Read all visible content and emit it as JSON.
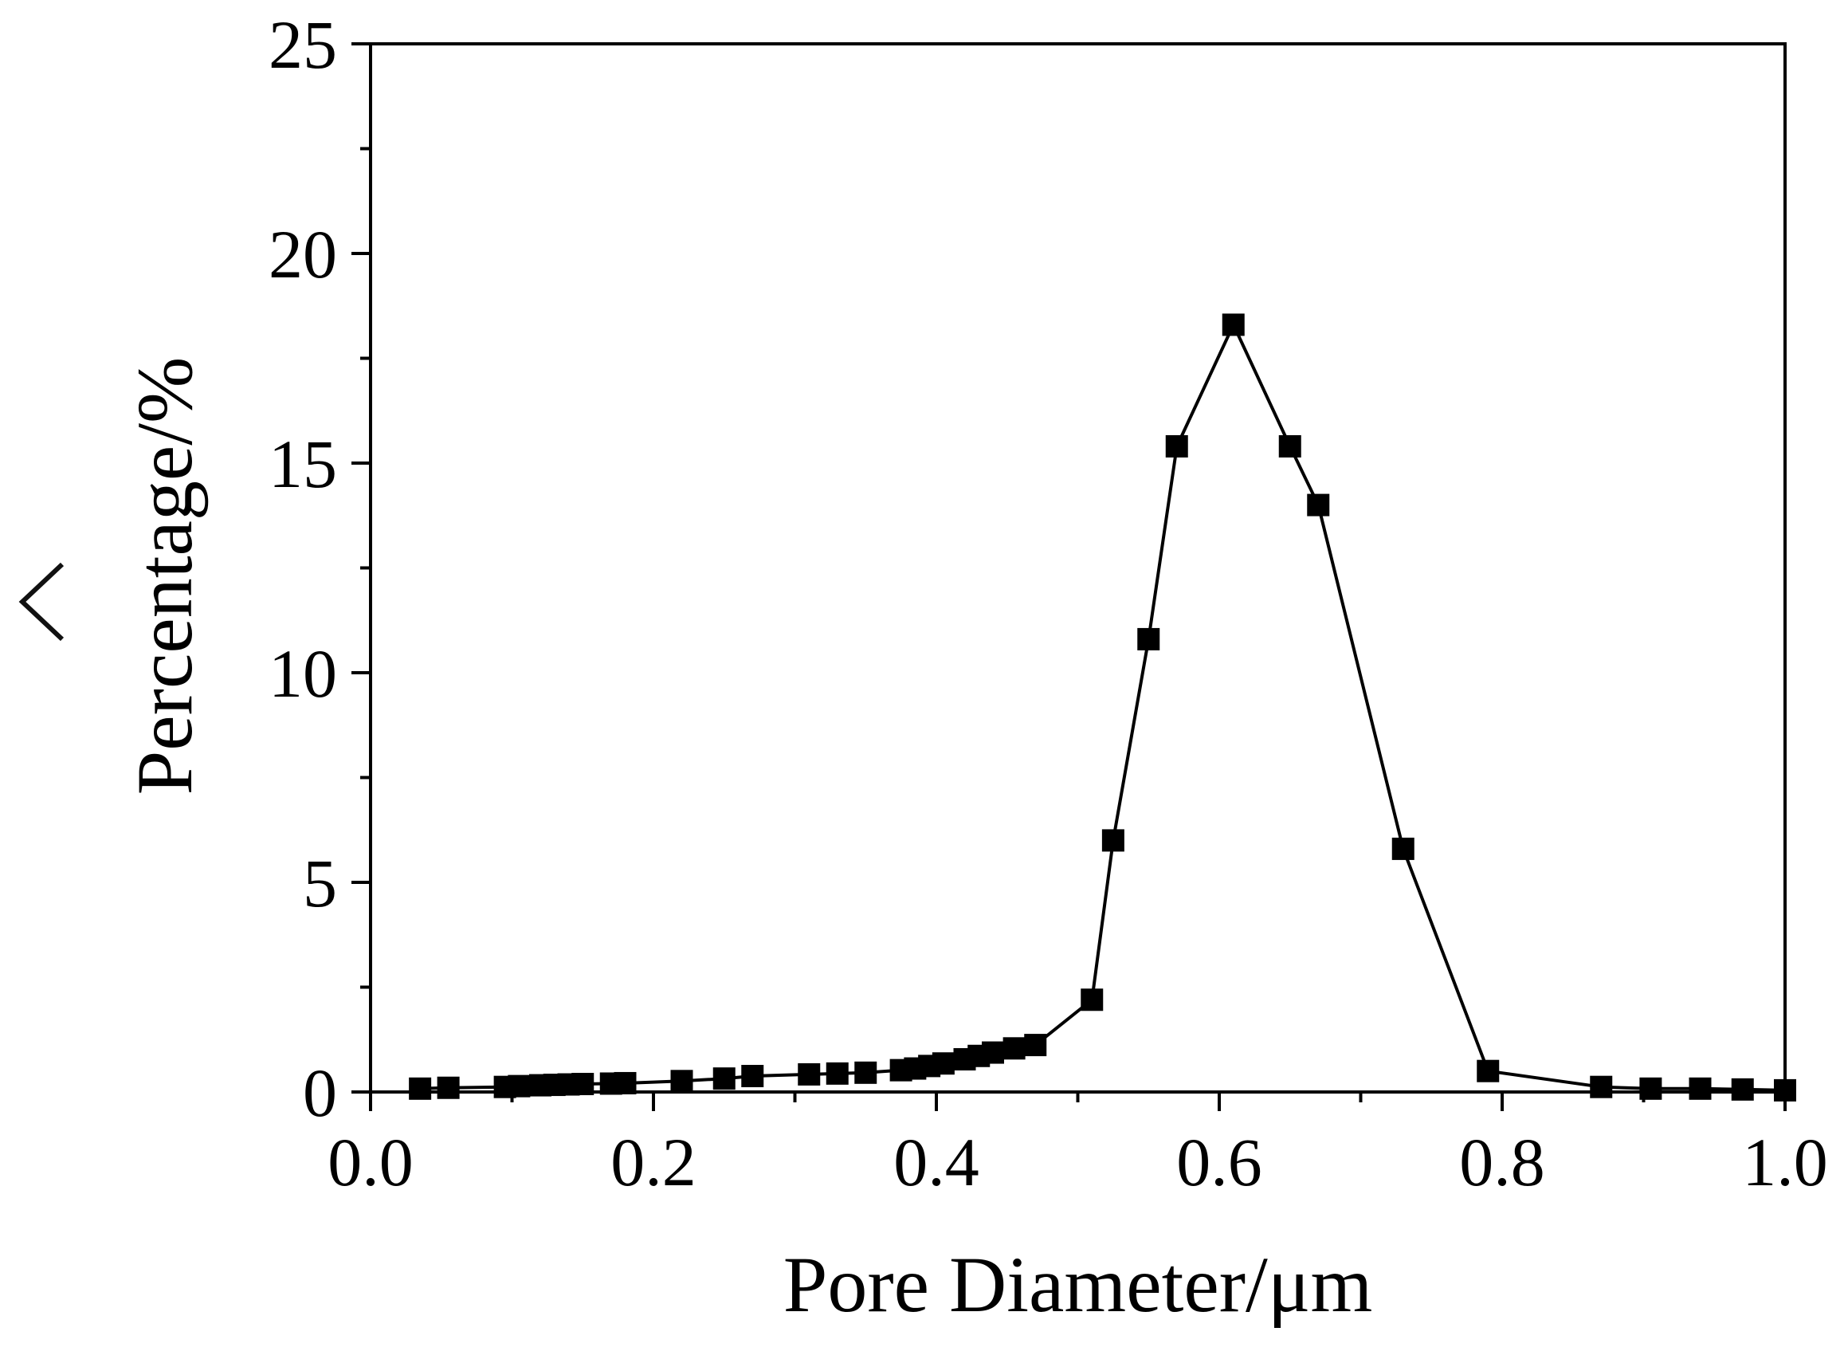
{
  "nav": {
    "back_icon": "chevron-left-icon"
  },
  "chart_data": {
    "type": "line",
    "markers": "filled-square",
    "xlabel": "Pore Diameter/μm",
    "ylabel": "Percentage/%",
    "xlim": [
      0.0,
      1.0
    ],
    "ylim": [
      0,
      25
    ],
    "xticks": [
      "0.0",
      "0.2",
      "0.4",
      "0.6",
      "0.8",
      "1.0"
    ],
    "yticks": [
      "0",
      "5",
      "10",
      "15",
      "20",
      "25"
    ],
    "grid": false,
    "legend": "none",
    "series": [
      {
        "color": "#000000",
        "x": [
          0.035,
          0.055,
          0.095,
          0.105,
          0.12,
          0.13,
          0.14,
          0.15,
          0.17,
          0.18,
          0.22,
          0.25,
          0.27,
          0.31,
          0.33,
          0.35,
          0.375,
          0.385,
          0.395,
          0.405,
          0.42,
          0.43,
          0.44,
          0.455,
          0.47,
          0.51,
          0.525,
          0.55,
          0.57,
          0.61,
          0.65,
          0.67,
          0.73,
          0.79,
          0.87,
          0.905,
          0.94,
          0.97,
          1.0
        ],
        "y": [
          0.08,
          0.1,
          0.12,
          0.14,
          0.16,
          0.17,
          0.18,
          0.19,
          0.2,
          0.21,
          0.26,
          0.32,
          0.38,
          0.42,
          0.44,
          0.46,
          0.52,
          0.56,
          0.62,
          0.68,
          0.78,
          0.86,
          0.94,
          1.04,
          1.12,
          2.2,
          6.0,
          10.8,
          15.4,
          18.3,
          15.4,
          14.0,
          5.8,
          0.5,
          0.12,
          0.08,
          0.08,
          0.06,
          0.04
        ]
      }
    ]
  }
}
